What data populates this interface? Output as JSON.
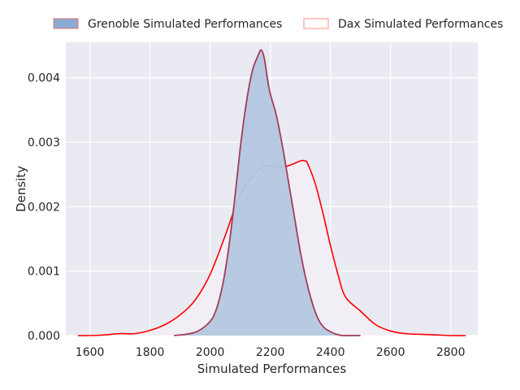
{
  "chart_data": {
    "type": "area",
    "xlabel": "Simulated Performances",
    "ylabel": "Density",
    "xlim": [
      1520,
      2890
    ],
    "ylim": [
      0,
      0.00455
    ],
    "xticks": [
      1600,
      1800,
      2000,
      2200,
      2400,
      2600,
      2800
    ],
    "xtick_labels": [
      "1600",
      "1800",
      "2000",
      "2200",
      "2400",
      "2600",
      "2800"
    ],
    "yticks": [
      0,
      0.001,
      0.002,
      0.003,
      0.004
    ],
    "ytick_labels": [
      "0.000",
      "0.001",
      "0.002",
      "0.003",
      "0.004"
    ],
    "grid": true,
    "legend_placement": "top",
    "series": [
      {
        "name": "Grenoble Simulated Performances",
        "style": "filled",
        "fill": "#b4c7e0",
        "stroke": "#a23c5a",
        "x": [
          1880,
          1920,
          1960,
          2000,
          2020,
          2040,
          2060,
          2080,
          2100,
          2120,
          2140,
          2160,
          2170,
          2180,
          2190,
          2200,
          2220,
          2240,
          2260,
          2280,
          2300,
          2320,
          2340,
          2360,
          2380,
          2400,
          2420,
          2440,
          2460,
          2480,
          2500
        ],
        "values": [
          0.0,
          2e-05,
          7e-05,
          0.00022,
          0.0004,
          0.00075,
          0.0013,
          0.00205,
          0.0029,
          0.0036,
          0.0041,
          0.00435,
          0.00443,
          0.0043,
          0.004,
          0.00375,
          0.00342,
          0.00295,
          0.0024,
          0.00185,
          0.0013,
          0.00085,
          0.0005,
          0.00025,
          0.00012,
          6e-05,
          2e-05,
          0.0,
          0.0,
          0.0,
          0.0
        ]
      },
      {
        "name": "Dax Simulated Performances",
        "style": "outline",
        "fill": "#f2eef5",
        "stroke": "#ff0000",
        "x": [
          1560,
          1600,
          1650,
          1700,
          1750,
          1800,
          1850,
          1900,
          1950,
          2000,
          2050,
          2080,
          2100,
          2125,
          2150,
          2175,
          2200,
          2225,
          2250,
          2275,
          2300,
          2315,
          2325,
          2350,
          2375,
          2400,
          2425,
          2450,
          2500,
          2550,
          2600,
          2650,
          2700,
          2750,
          2800,
          2850
        ],
        "values": [
          0.0,
          0.0,
          1e-05,
          3e-05,
          3e-05,
          8e-05,
          0.00017,
          0.00032,
          0.00055,
          0.00095,
          0.00155,
          0.00195,
          0.00218,
          0.00238,
          0.00252,
          0.00262,
          0.00263,
          0.00262,
          0.00262,
          0.00266,
          0.00271,
          0.00271,
          0.00266,
          0.00235,
          0.0019,
          0.0014,
          0.00095,
          0.0006,
          0.00038,
          0.00017,
          7e-05,
          3e-05,
          2e-05,
          1e-05,
          0.0,
          0.0
        ]
      }
    ]
  }
}
